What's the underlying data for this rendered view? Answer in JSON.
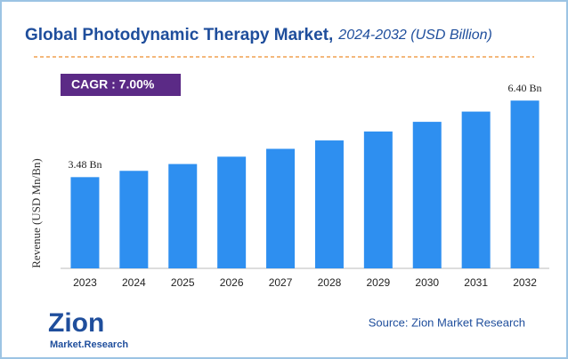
{
  "chart_data": {
    "type": "bar",
    "title": "Global Photodynamic Therapy Market,",
    "subtitle": "2024-2032 (USD Billion)",
    "annotation": "CAGR : 7.00%",
    "y_label": "Revenue (USD Mn/Bn)",
    "categories": [
      "2023",
      "2024",
      "2025",
      "2026",
      "2027",
      "2028",
      "2029",
      "2030",
      "2031",
      "2032"
    ],
    "values": [
      3.48,
      3.72,
      3.98,
      4.26,
      4.56,
      4.88,
      5.22,
      5.59,
      5.98,
      6.4
    ],
    "value_labels": [
      "3.48 Bn",
      null,
      null,
      null,
      null,
      null,
      null,
      null,
      null,
      "6.40 Bn"
    ],
    "color": "#2e8ff0",
    "ylim": [
      0,
      7
    ],
    "source": "Source: Zion Market Research",
    "logo": {
      "name": "Zion",
      "tagline": "Market.Research"
    }
  }
}
